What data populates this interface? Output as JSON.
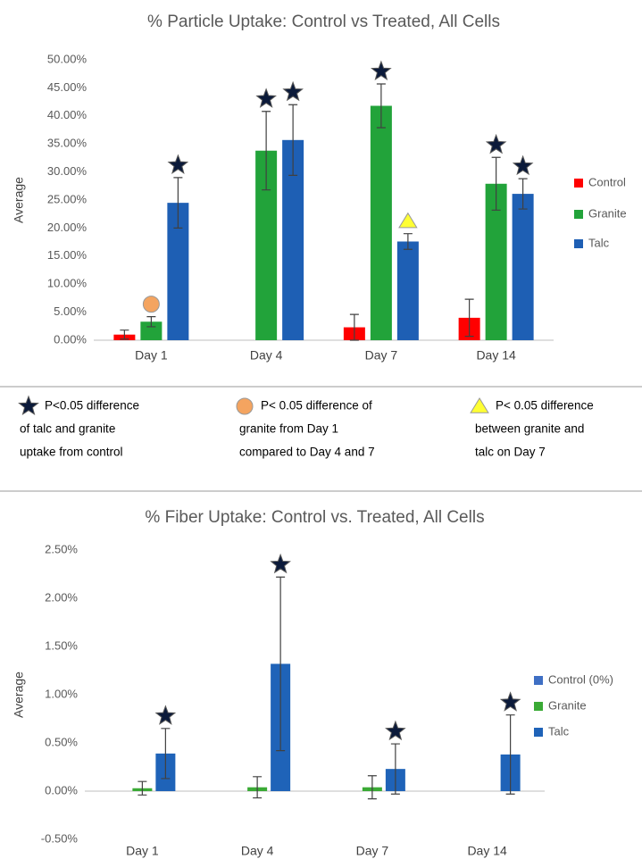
{
  "chart_data": [
    {
      "type": "bar",
      "title": "% Particle Uptake: Control vs Treated, All Cells",
      "ylabel": "Average",
      "categories": [
        "Day 1",
        "Day 4",
        "Day 7",
        "Day 14"
      ],
      "series": [
        {
          "name": "Control",
          "color": "#ff0000",
          "values": [
            1.0,
            null,
            2.3,
            4.0
          ],
          "errors": [
            0.8,
            null,
            2.3,
            3.3
          ]
        },
        {
          "name": "Granite",
          "color": "#22a33a",
          "values": [
            3.3,
            33.8,
            41.8,
            27.9
          ],
          "errors": [
            0.9,
            7.0,
            3.9,
            4.7
          ]
        },
        {
          "name": "Talc",
          "color": "#1e5fb4",
          "values": [
            24.5,
            35.7,
            17.6,
            26.1
          ],
          "errors": [
            4.5,
            6.3,
            1.4,
            2.7
          ]
        }
      ],
      "ylim": [
        0,
        50
      ],
      "yticks": [
        {
          "value": 0,
          "label": "0.00%"
        },
        {
          "value": 5,
          "label": "5.00%"
        },
        {
          "value": 10,
          "label": "10.00%"
        },
        {
          "value": 15,
          "label": "15.00%"
        },
        {
          "value": 20,
          "label": "20.00%"
        },
        {
          "value": 25,
          "label": "25.00%"
        },
        {
          "value": 30,
          "label": "30.00%"
        },
        {
          "value": 35,
          "label": "35.00%"
        },
        {
          "value": 40,
          "label": "40.00%"
        },
        {
          "value": 45,
          "label": "45.00%"
        },
        {
          "value": 50,
          "label": "50.00%"
        }
      ],
      "legend": "right"
    },
    {
      "type": "bar",
      "title": "% Fiber Uptake: Control vs. Treated, All Cells",
      "ylabel": "Average",
      "categories": [
        "Day 1",
        "Day 4",
        "Day 7",
        "Day 14"
      ],
      "series": [
        {
          "name": "Control (0%)",
          "color": "#3f6fc4",
          "values": [
            null,
            null,
            null,
            null
          ],
          "errors": [
            null,
            null,
            null,
            null
          ]
        },
        {
          "name": "Granite",
          "color": "#3aaa35",
          "values": [
            0.03,
            0.04,
            0.04,
            null
          ],
          "errors": [
            0.07,
            0.11,
            0.12,
            null
          ]
        },
        {
          "name": "Talc",
          "color": "#1f63b8",
          "values": [
            0.39,
            1.32,
            0.23,
            0.38
          ],
          "errors": [
            0.26,
            0.9,
            0.26,
            0.41
          ]
        }
      ],
      "ylim": [
        -0.5,
        2.5
      ],
      "yticks": [
        {
          "value": -0.5,
          "label": "-0.50%"
        },
        {
          "value": 0,
          "label": "0.00%"
        },
        {
          "value": 0.5,
          "label": "0.50%"
        },
        {
          "value": 1,
          "label": "1.00%"
        },
        {
          "value": 1.5,
          "label": "1.50%"
        },
        {
          "value": 2,
          "label": "2.00%"
        },
        {
          "value": 2.5,
          "label": "2.50%"
        }
      ],
      "legend": "right"
    }
  ],
  "notes": [
    {
      "lines": [
        "P<0.05 difference",
        "of talc and granite",
        "uptake from control"
      ]
    },
    {
      "lines": [
        "P< 0.05 difference of",
        "granite from Day 1",
        "compared to Day 4 and 7"
      ]
    },
    {
      "lines": [
        "P< 0.05 difference",
        "between granite and",
        "talc on Day 7"
      ]
    }
  ]
}
